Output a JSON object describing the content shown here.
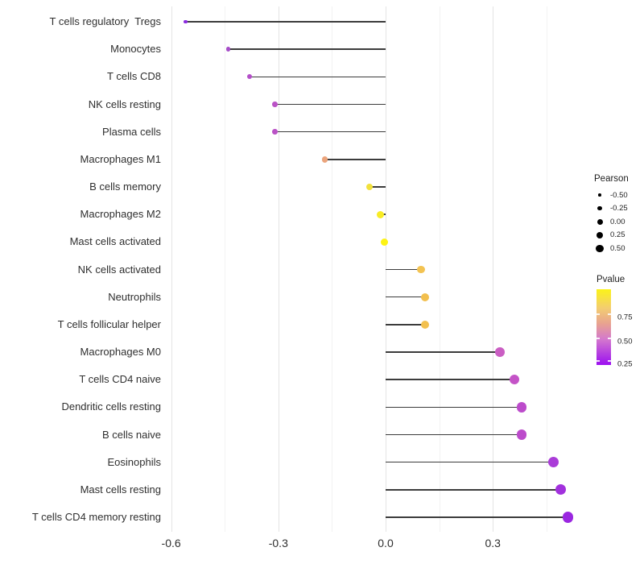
{
  "chart_data": {
    "type": "lollipop",
    "orientation": "horizontal",
    "title": "",
    "xlabel": "",
    "ylabel": "",
    "grid": "vertical-only",
    "xlim": [
      -0.615,
      0.565
    ],
    "x_major_ticks": [
      -0.6,
      -0.3,
      0.0,
      0.3
    ],
    "x_tick_labels": [
      "-0.6",
      "-0.3",
      "0.0",
      "0.3"
    ],
    "x_minor_ticks": [
      -0.45,
      -0.15,
      0.15,
      0.45
    ],
    "size_encoding": "Pearson correlation",
    "color_encoding": "Pvalue (yellow = high, purple = low)",
    "points": [
      {
        "label": "T cells regulatory  Tregs",
        "pearson": -0.56,
        "pvalue_est": 0.2,
        "color": "#8b2be0"
      },
      {
        "label": "Monocytes",
        "pearson": -0.44,
        "pvalue_est": 0.3,
        "color": "#a64dc8"
      },
      {
        "label": "T cells CD8",
        "pearson": -0.38,
        "pvalue_est": 0.35,
        "color": "#b44fc9"
      },
      {
        "label": "NK cells resting",
        "pearson": -0.31,
        "pvalue_est": 0.38,
        "color": "#ba52c6"
      },
      {
        "label": "Plasma cells",
        "pearson": -0.31,
        "pvalue_est": 0.38,
        "color": "#ba52c6"
      },
      {
        "label": "Macrophages M1",
        "pearson": -0.17,
        "pvalue_est": 0.72,
        "color": "#eba47c"
      },
      {
        "label": "B cells memory",
        "pearson": -0.045,
        "pvalue_est": 0.9,
        "color": "#f2e13c"
      },
      {
        "label": "Macrophages M2",
        "pearson": -0.015,
        "pvalue_est": 0.94,
        "color": "#f8ec25"
      },
      {
        "label": "Mast cells activated",
        "pearson": -0.003,
        "pvalue_est": 0.97,
        "color": "#fdf313"
      },
      {
        "label": "NK cells activated",
        "pearson": 0.1,
        "pvalue_est": 0.82,
        "color": "#f3c352"
      },
      {
        "label": "Neutrophils",
        "pearson": 0.11,
        "pvalue_est": 0.83,
        "color": "#f2bf4e"
      },
      {
        "label": "T cells follicular helper",
        "pearson": 0.11,
        "pvalue_est": 0.83,
        "color": "#f2c04f"
      },
      {
        "label": "Macrophages M0",
        "pearson": 0.32,
        "pvalue_est": 0.45,
        "color": "#ca5ec3"
      },
      {
        "label": "T cells CD4 naive",
        "pearson": 0.36,
        "pvalue_est": 0.42,
        "color": "#c453c7"
      },
      {
        "label": "Dendritic cells resting",
        "pearson": 0.38,
        "pvalue_est": 0.4,
        "color": "#bc4bcb"
      },
      {
        "label": "B cells naive",
        "pearson": 0.38,
        "pvalue_est": 0.4,
        "color": "#bc4bcb"
      },
      {
        "label": "Eosinophils",
        "pearson": 0.47,
        "pvalue_est": 0.28,
        "color": "#aa3cd8"
      },
      {
        "label": "Mast cells resting",
        "pearson": 0.49,
        "pvalue_est": 0.24,
        "color": "#a231dd"
      },
      {
        "label": "T cells CD4 memory resting",
        "pearson": 0.51,
        "pvalue_est": 0.21,
        "color": "#9a27e0"
      }
    ],
    "legend_size": {
      "title": "Pearson",
      "entries": [
        "-0.50",
        "-0.25",
        "0.00",
        "0.25",
        "0.50"
      ],
      "dot_color": "#000000"
    },
    "legend_color": {
      "title": "Pvalue",
      "ticks": [
        "0.75",
        "0.50",
        "0.25"
      ],
      "gradient_top": "#fbf318",
      "gradient_bottom": "#9c0ff0"
    },
    "stick_color": "#3c3c3c"
  }
}
